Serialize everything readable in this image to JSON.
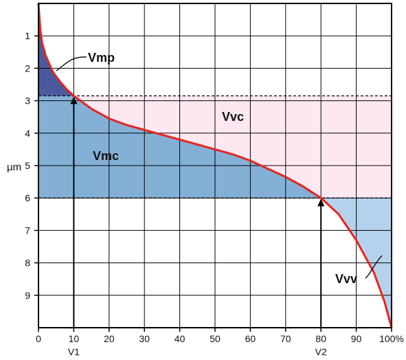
{
  "chart_data": {
    "type": "area",
    "title": "",
    "xlabel": "",
    "ylabel": "µm",
    "x_ticks": [
      "0",
      "10",
      "20",
      "30",
      "40",
      "50",
      "60",
      "70",
      "80",
      "90",
      "100%"
    ],
    "y_ticks": [
      "1",
      "2",
      "3",
      "4",
      "5",
      "6",
      "7",
      "8",
      "9"
    ],
    "xlim": [
      0,
      100
    ],
    "ylim": [
      10,
      0
    ],
    "y_inverted": true,
    "grid": true,
    "curve": {
      "name": "",
      "color": "#e8231c",
      "x": [
        0,
        0.5,
        1,
        2,
        4,
        6,
        8,
        10,
        15,
        20,
        25,
        30,
        35,
        40,
        45,
        50,
        55,
        60,
        65,
        70,
        75,
        80,
        85,
        90,
        95,
        98,
        100
      ],
      "y": [
        0,
        0.8,
        1.2,
        1.6,
        2.1,
        2.4,
        2.65,
        2.85,
        3.25,
        3.55,
        3.75,
        3.9,
        4.05,
        4.2,
        4.35,
        4.5,
        4.65,
        4.85,
        5.1,
        5.35,
        5.65,
        6.0,
        6.5,
        7.3,
        8.3,
        9.2,
        10
      ]
    },
    "thresholds": [
      {
        "y": 2.85,
        "style": "dashed"
      },
      {
        "y": 6.0,
        "style": "dashed"
      }
    ],
    "markers": [
      {
        "label": "V1",
        "x": 10
      },
      {
        "label": "V2",
        "x": 80
      }
    ],
    "regions": [
      {
        "label": "Vmp",
        "color": "#4b5a9e"
      },
      {
        "label": "Vmc",
        "color": "#84b0d6"
      },
      {
        "label": "Vvc",
        "color": "#fde8f1"
      },
      {
        "label": "Vvv",
        "color": "#b4d2ec"
      }
    ]
  }
}
